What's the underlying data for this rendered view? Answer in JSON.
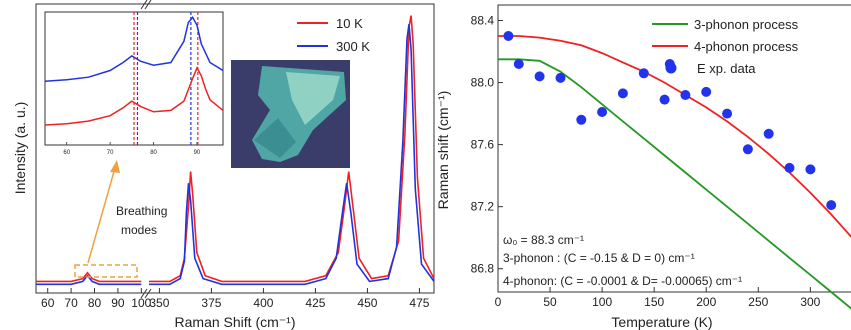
{
  "chart_data": [
    {
      "type": "line",
      "xlabel": "Raman Shift (cm⁻¹)",
      "ylabel": "Intensity (a. u.)",
      "x_axis_break": [
        100,
        350
      ],
      "x_ticks": [
        60,
        70,
        80,
        90,
        100,
        350,
        375,
        400,
        425,
        450,
        475
      ],
      "series": [
        {
          "name": "10 K",
          "color": "#ee2222",
          "x": [
            55,
            70,
            75,
            77,
            79,
            82,
            90,
            100,
            345,
            355,
            360,
            362,
            364,
            365,
            366,
            368,
            372,
            380,
            400,
            420,
            430,
            436,
            439,
            441,
            443,
            446,
            452,
            460,
            465,
            468,
            470,
            471,
            472,
            474,
            477,
            482
          ],
          "y": [
            0.04,
            0.04,
            0.05,
            0.07,
            0.05,
            0.04,
            0.04,
            0.04,
            0.04,
            0.04,
            0.06,
            0.12,
            0.3,
            0.42,
            0.34,
            0.14,
            0.06,
            0.04,
            0.04,
            0.04,
            0.06,
            0.14,
            0.3,
            0.42,
            0.3,
            0.12,
            0.05,
            0.06,
            0.18,
            0.55,
            0.92,
            0.96,
            0.86,
            0.4,
            0.12,
            0.05
          ]
        },
        {
          "name": "300 K",
          "color": "#2233dd",
          "x": [
            55,
            70,
            75,
            77,
            79,
            82,
            90,
            100,
            345,
            355,
            360,
            362,
            363,
            364,
            365,
            367,
            371,
            380,
            400,
            420,
            430,
            435,
            438,
            440,
            442,
            445,
            451,
            460,
            464,
            467,
            469,
            470,
            471,
            473,
            476,
            482
          ],
          "y": [
            0.03,
            0.03,
            0.04,
            0.06,
            0.04,
            0.03,
            0.03,
            0.03,
            0.03,
            0.03,
            0.05,
            0.11,
            0.28,
            0.38,
            0.32,
            0.12,
            0.05,
            0.03,
            0.03,
            0.03,
            0.05,
            0.12,
            0.28,
            0.38,
            0.28,
            0.1,
            0.04,
            0.05,
            0.16,
            0.52,
            0.88,
            0.93,
            0.84,
            0.36,
            0.1,
            0.04
          ]
        }
      ],
      "annotations": [
        "Breathing",
        "modes"
      ],
      "inset": {
        "type": "line",
        "x_ticks": [
          60,
          70,
          80,
          90
        ],
        "series": [
          {
            "name": "10 K",
            "color": "#ee2222",
            "x": [
              55,
              60,
              65,
              70,
              73,
              75,
              77,
              80,
              84,
              87,
              89,
              90,
              91,
              92,
              93,
              96
            ],
            "y": [
              0.15,
              0.16,
              0.18,
              0.22,
              0.28,
              0.33,
              0.29,
              0.25,
              0.26,
              0.33,
              0.5,
              0.58,
              0.52,
              0.42,
              0.34,
              0.26
            ]
          },
          {
            "name": "300 K",
            "color": "#2233dd",
            "x": [
              55,
              60,
              65,
              70,
              73,
              75,
              77,
              80,
              84,
              87,
              88,
              89,
              90,
              91,
              93,
              96
            ],
            "y": [
              0.48,
              0.49,
              0.51,
              0.56,
              0.62,
              0.67,
              0.63,
              0.6,
              0.62,
              0.78,
              0.92,
              0.96,
              0.9,
              0.76,
              0.62,
              0.56
            ]
          }
        ],
        "markers": [
          {
            "x": 75.5,
            "color": "#ee2222"
          },
          {
            "x": 76.3,
            "color": "#2233dd"
          },
          {
            "x": 88.6,
            "color": "#2233dd"
          },
          {
            "x": 90.2,
            "color": "#ee2222"
          }
        ]
      }
    },
    {
      "type": "scatter",
      "xlabel": "Temperature (K)",
      "ylabel": "Raman shift (cm⁻¹)",
      "xlim": [
        0,
        340
      ],
      "ylim": [
        86.65,
        88.5
      ],
      "x_ticks": [
        0,
        50,
        100,
        150,
        200,
        250,
        300
      ],
      "y_ticks": [
        86.8,
        87.2,
        87.6,
        88.0,
        88.4
      ],
      "series": [
        {
          "name": "3-phonon process",
          "type": "line",
          "color": "#229922",
          "x": [
            0,
            20,
            40,
            60,
            80,
            100,
            120,
            140,
            160,
            180,
            200,
            220,
            240,
            260,
            280,
            300,
            320,
            340
          ],
          "y": [
            88.15,
            88.15,
            88.14,
            88.07,
            87.97,
            87.86,
            87.75,
            87.64,
            87.53,
            87.42,
            87.31,
            87.2,
            87.09,
            86.98,
            86.87,
            86.76,
            86.65,
            86.54
          ]
        },
        {
          "name": "4-phonon process",
          "type": "line",
          "color": "#ee2222",
          "x": [
            0,
            20,
            40,
            60,
            80,
            100,
            120,
            140,
            160,
            180,
            200,
            220,
            240,
            260,
            280,
            300,
            320,
            340
          ],
          "y": [
            88.3,
            88.3,
            88.29,
            88.27,
            88.24,
            88.19,
            88.13,
            88.07,
            88.0,
            87.92,
            87.84,
            87.75,
            87.65,
            87.54,
            87.42,
            87.29,
            87.15,
            87.0
          ]
        },
        {
          "name": "E xp. data",
          "type": "scatter",
          "color": "#2233ee",
          "x": [
            10,
            20,
            40,
            60,
            80,
            100,
            120,
            140,
            160,
            165,
            180,
            200,
            220,
            240,
            260,
            280,
            300,
            320
          ],
          "y": [
            88.3,
            88.12,
            88.04,
            88.03,
            87.76,
            87.81,
            87.93,
            88.06,
            87.89,
            88.12,
            87.92,
            87.94,
            87.8,
            87.57,
            87.67,
            87.45,
            87.44,
            87.21
          ]
        }
      ],
      "annotations": [
        "ω₀ = 88.3 cm⁻¹",
        "3-phonon : (C = -0.15 & D = 0) cm⁻¹",
        "4-phonon: (C = -0.0001 & D= -0.00065) cm⁻¹"
      ]
    }
  ]
}
